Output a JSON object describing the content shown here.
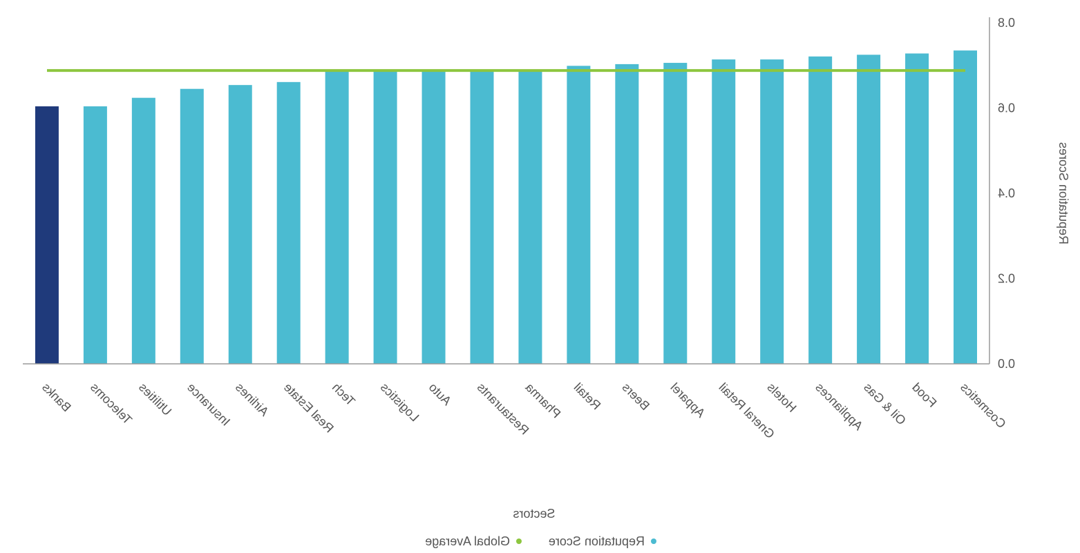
{
  "chart_data": {
    "type": "bar",
    "xlabel": "Sectors",
    "ylabel": "Reputation Scores",
    "ylim": [
      0,
      0.8
    ],
    "yticks": [
      "0.0",
      "0.2",
      "0.4",
      "0.6",
      "0.8"
    ],
    "categories": [
      "Banks",
      "Telecoms",
      "Utilities",
      "Insurance",
      "Airlines",
      "Real Estate",
      "Tech",
      "Logistics",
      "Auto",
      "Restaurants",
      "Pharma",
      "Retail",
      "Beers",
      "Apparel",
      "Gneral Retail",
      "Hotels",
      "Appliances",
      "Oil & Gas",
      "Food",
      "Cosmetics"
    ],
    "series": [
      {
        "name": "Reputation Score",
        "values": [
          0.604,
          0.604,
          0.624,
          0.645,
          0.654,
          0.661,
          0.688,
          0.688,
          0.688,
          0.688,
          0.69,
          0.699,
          0.703,
          0.706,
          0.714,
          0.714,
          0.721,
          0.725,
          0.728,
          0.735
        ],
        "color": "#4bbbd1",
        "highlight": {
          "category": "Banks",
          "color": "#1f3a7b"
        }
      },
      {
        "name": "Global Average",
        "type": "line",
        "value": 0.688,
        "color": "#8dc63f"
      }
    ],
    "legend_position": "bottom-center",
    "y_axis_side": "right",
    "grid": false,
    "mirrored": true
  }
}
